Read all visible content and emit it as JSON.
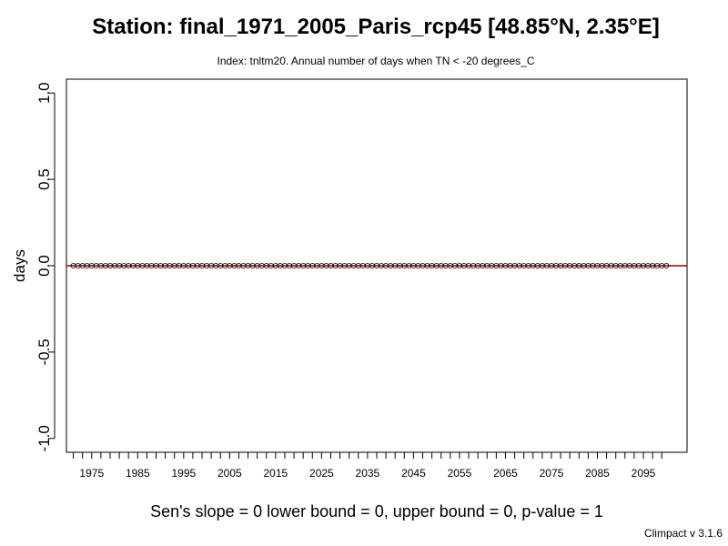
{
  "chart_data": {
    "type": "scatter",
    "title": "Station: final_1971_2005_Paris_rcp45 [48.85°N, 2.35°E]",
    "subtitle": "Index: tnltm20. Annual number of days when TN < -20 degrees_C",
    "xlabel": "",
    "ylabel": "days",
    "xlim": [
      1969.5,
      2104.5
    ],
    "ylim": [
      -1.08,
      1.08
    ],
    "x_ticks": [
      1971,
      1973,
      1975,
      1977,
      1979,
      1981,
      1983,
      1985,
      1987,
      1989,
      1991,
      1993,
      1995,
      1997,
      1999,
      2001,
      2003,
      2005,
      2007,
      2009,
      2011,
      2013,
      2015,
      2017,
      2019,
      2021,
      2023,
      2025,
      2027,
      2029,
      2031,
      2033,
      2035,
      2037,
      2039,
      2041,
      2043,
      2045,
      2047,
      2049,
      2051,
      2053,
      2055,
      2057,
      2059,
      2061,
      2063,
      2065,
      2067,
      2069,
      2071,
      2073,
      2075,
      2077,
      2079,
      2081,
      2083,
      2085,
      2087,
      2089,
      2091,
      2093,
      2095,
      2097,
      2099
    ],
    "x_tick_labels": [
      {
        "x": 1975,
        "label": "1975"
      },
      {
        "x": 1985,
        "label": "1985"
      },
      {
        "x": 1995,
        "label": "1995"
      },
      {
        "x": 2005,
        "label": "2005"
      },
      {
        "x": 2015,
        "label": "2015"
      },
      {
        "x": 2025,
        "label": "2025"
      },
      {
        "x": 2035,
        "label": "2035"
      },
      {
        "x": 2045,
        "label": "2045"
      },
      {
        "x": 2055,
        "label": "2055"
      },
      {
        "x": 2065,
        "label": "2065"
      },
      {
        "x": 2075,
        "label": "2075"
      },
      {
        "x": 2085,
        "label": "2085"
      },
      {
        "x": 2095,
        "label": "2095"
      }
    ],
    "y_ticks": [
      {
        "value": 1.0,
        "label": "1.0"
      },
      {
        "value": 0.5,
        "label": "0.5"
      },
      {
        "value": 0.0,
        "label": "0.0"
      },
      {
        "value": -0.5,
        "label": "-0.5"
      },
      {
        "value": -1.0,
        "label": "-1.0"
      }
    ],
    "series": [
      {
        "x_start": 1971,
        "x_end": 2100,
        "values": [
          0,
          0,
          0,
          0,
          0,
          0,
          0,
          0,
          0,
          0,
          0,
          0,
          0,
          0,
          0,
          0,
          0,
          0,
          0,
          0,
          0,
          0,
          0,
          0,
          0,
          0,
          0,
          0,
          0,
          0,
          0,
          0,
          0,
          0,
          0,
          0,
          0,
          0,
          0,
          0,
          0,
          0,
          0,
          0,
          0,
          0,
          0,
          0,
          0,
          0,
          0,
          0,
          0,
          0,
          0,
          0,
          0,
          0,
          0,
          0,
          0,
          0,
          0,
          0,
          0,
          0,
          0,
          0,
          0,
          0,
          0,
          0,
          0,
          0,
          0,
          0,
          0,
          0,
          0,
          0,
          0,
          0,
          0,
          0,
          0,
          0,
          0,
          0,
          0,
          0,
          0,
          0,
          0,
          0,
          0,
          0,
          0,
          0,
          0,
          0,
          0,
          0,
          0,
          0,
          0,
          0,
          0,
          0,
          0,
          0,
          0,
          0,
          0,
          0,
          0,
          0,
          0,
          0,
          0,
          0,
          0,
          0,
          0,
          0,
          0,
          0,
          0,
          0,
          0,
          0
        ]
      }
    ],
    "trend_line": {
      "slope": 0,
      "intercept": 0
    },
    "grid": false,
    "colors": {
      "points": "#000000",
      "trend": "#8b0000",
      "axes": "#000000"
    }
  },
  "footer": {
    "stats": "Sen's slope = 0   lower bound = 0,   upper bound = 0,   p-value = 1",
    "credit": "Climpact v 3.1.6"
  }
}
